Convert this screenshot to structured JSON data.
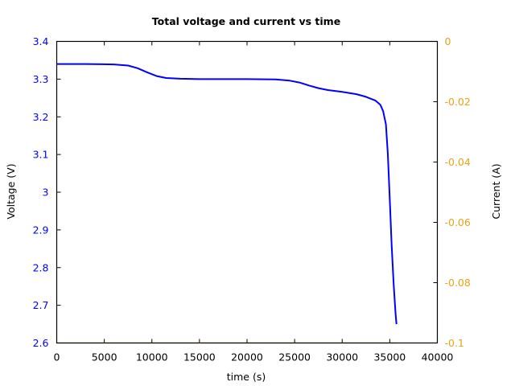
{
  "chart_data": {
    "type": "line",
    "title": "Total voltage and current vs time",
    "xlabel": "time (s)",
    "ylabel": "Voltage (V)",
    "y2label": "Current (A)",
    "xlim": [
      0,
      40000
    ],
    "ylim": [
      2.6,
      3.4
    ],
    "y2lim": [
      -0.1,
      0
    ],
    "x_ticks": [
      0,
      5000,
      10000,
      15000,
      20000,
      25000,
      30000,
      35000,
      40000
    ],
    "x_tick_labels": [
      "0",
      "5000",
      "10000",
      "15000",
      "20000",
      "25000",
      "30000",
      "35000",
      "40000"
    ],
    "y_ticks": [
      2.6,
      2.7,
      2.8,
      2.9,
      3.0,
      3.1,
      3.2,
      3.3,
      3.4
    ],
    "y_tick_labels": [
      "2.6",
      "2.7",
      "2.8",
      "2.9",
      "3",
      "3.1",
      "3.2",
      "3.3",
      "3.4"
    ],
    "y2_ticks": [
      -0.1,
      -0.08,
      -0.06,
      -0.04,
      -0.02,
      0
    ],
    "y2_tick_labels": [
      "-0.1",
      "-0.08",
      "-0.06",
      "-0.04",
      "-0.02",
      "0"
    ],
    "grid": false,
    "legend": null,
    "colors": {
      "voltage": "#0000ff",
      "current": "#e8a317",
      "axis": "#000000"
    },
    "series": [
      {
        "name": "Voltage",
        "axis": "left",
        "color": "#0000ff",
        "x": [
          0,
          3000,
          6000,
          7500,
          8500,
          9500,
          10500,
          11500,
          13000,
          15000,
          20000,
          23000,
          24500,
          25500,
          26500,
          27500,
          28500,
          30000,
          31500,
          32500,
          33500,
          34000,
          34300,
          34600,
          34800,
          35000,
          35200,
          35400,
          35600,
          35700
        ],
        "values": [
          3.34,
          3.34,
          3.339,
          3.336,
          3.329,
          3.318,
          3.308,
          3.303,
          3.301,
          3.3,
          3.3,
          3.299,
          3.296,
          3.291,
          3.283,
          3.276,
          3.271,
          3.266,
          3.26,
          3.253,
          3.243,
          3.232,
          3.215,
          3.18,
          3.1,
          2.98,
          2.86,
          2.76,
          2.68,
          2.65
        ]
      },
      {
        "name": "Current",
        "axis": "right",
        "color": "#e8a317",
        "x": [
          0,
          35700
        ],
        "values": [
          -0.1,
          -0.1
        ]
      }
    ]
  }
}
